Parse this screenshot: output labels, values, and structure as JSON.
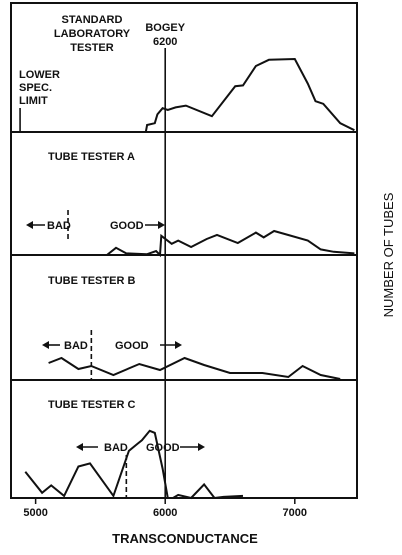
{
  "chart_data": {
    "type": "line",
    "xlabel": "TRANSCONDUCTANCE",
    "ylabel": "NUMBER OF TUBES",
    "xlim": [
      4810,
      7480
    ],
    "x_ticks": [
      5000,
      6000,
      7000
    ],
    "bogey": {
      "value": 6200,
      "label_line1": "BOGEY",
      "label_line2": "6200",
      "x": 6000
    },
    "panels": [
      {
        "name": "standard",
        "title_lines": [
          "STANDARD",
          "LABORATORY",
          "TESTER"
        ],
        "lower_spec": {
          "x": 4880,
          "lines": [
            "LOWER",
            "SPEC.",
            "LIMIT"
          ]
        },
        "ylim": [
          0,
          100
        ],
        "points": [
          [
            5850,
            0
          ],
          [
            5860,
            8
          ],
          [
            5920,
            10
          ],
          [
            5940,
            20
          ],
          [
            5980,
            27
          ],
          [
            6020,
            25
          ],
          [
            6080,
            28
          ],
          [
            6160,
            30
          ],
          [
            6360,
            18
          ],
          [
            6540,
            52
          ],
          [
            6600,
            53
          ],
          [
            6700,
            75
          ],
          [
            6800,
            82
          ],
          [
            7000,
            83
          ],
          [
            7100,
            55
          ],
          [
            7160,
            35
          ],
          [
            7220,
            32
          ],
          [
            7350,
            10
          ],
          [
            7460,
            2
          ]
        ]
      },
      {
        "name": "tester-a",
        "title_lines": [
          "TUBE TESTER A"
        ],
        "bad_label": "BAD",
        "good_label": "GOOD",
        "divider_x": 5250,
        "ylim": [
          0,
          100
        ],
        "points": [
          [
            5550,
            0
          ],
          [
            5620,
            9
          ],
          [
            5700,
            2
          ],
          [
            5860,
            1
          ],
          [
            5930,
            5
          ],
          [
            5960,
            0
          ],
          [
            5970,
            24
          ],
          [
            6050,
            14
          ],
          [
            6100,
            18
          ],
          [
            6200,
            10
          ],
          [
            6320,
            20
          ],
          [
            6400,
            25
          ],
          [
            6560,
            15
          ],
          [
            6700,
            28
          ],
          [
            6760,
            22
          ],
          [
            6840,
            30
          ],
          [
            6950,
            25
          ],
          [
            7100,
            18
          ],
          [
            7200,
            7
          ],
          [
            7300,
            4
          ],
          [
            7460,
            2
          ]
        ]
      },
      {
        "name": "tester-b",
        "title_lines": [
          "TUBE TESTER B"
        ],
        "bad_label": "BAD",
        "good_label": "GOOD",
        "divider_x": 5430,
        "ylim": [
          0,
          100
        ],
        "points": [
          [
            5100,
            17
          ],
          [
            5200,
            22
          ],
          [
            5330,
            11
          ],
          [
            5430,
            14
          ],
          [
            5600,
            5
          ],
          [
            5800,
            16
          ],
          [
            5960,
            10
          ],
          [
            6150,
            22
          ],
          [
            6300,
            15
          ],
          [
            6500,
            7
          ],
          [
            6750,
            7
          ],
          [
            6950,
            3
          ],
          [
            7060,
            14
          ],
          [
            7200,
            5
          ],
          [
            7350,
            1
          ]
        ]
      },
      {
        "name": "tester-c",
        "title_lines": [
          "TUBE TESTER C"
        ],
        "bad_label": "BAD",
        "good_label": "GOOD",
        "divider_x": 5700,
        "ylim": [
          0,
          100
        ],
        "points": [
          [
            4920,
            25
          ],
          [
            5050,
            5
          ],
          [
            5120,
            12
          ],
          [
            5220,
            2
          ],
          [
            5330,
            30
          ],
          [
            5420,
            33
          ],
          [
            5600,
            2
          ],
          [
            5720,
            45
          ],
          [
            5790,
            52
          ],
          [
            5820,
            55
          ],
          [
            5880,
            64
          ],
          [
            5920,
            62
          ],
          [
            5980,
            28
          ],
          [
            6020,
            0
          ],
          [
            6060,
            0
          ],
          [
            6100,
            3
          ],
          [
            6200,
            0
          ],
          [
            6300,
            13
          ],
          [
            6380,
            0
          ],
          [
            6450,
            1
          ],
          [
            6600,
            2
          ]
        ]
      }
    ]
  }
}
